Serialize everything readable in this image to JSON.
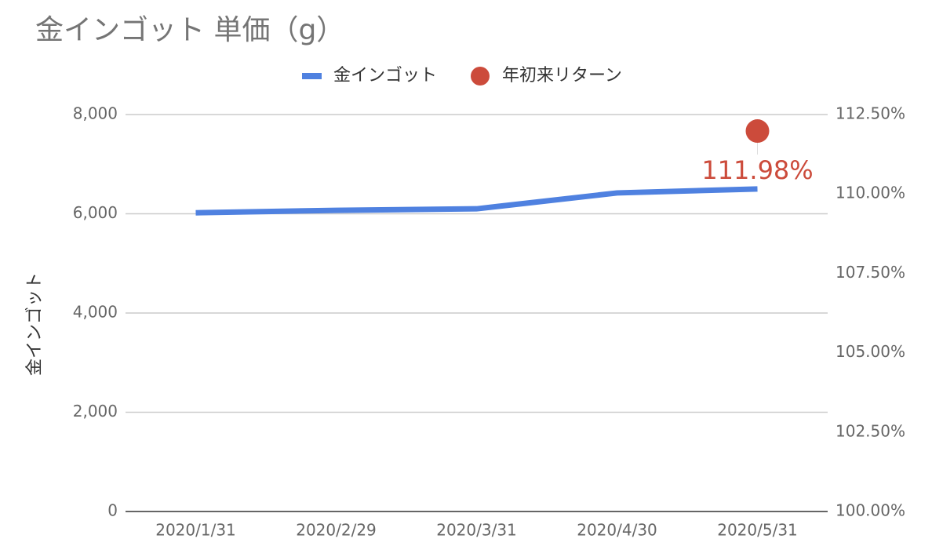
{
  "chart_data": {
    "type": "line",
    "title": "金インゴット 単価（g）",
    "y_label": "金インゴット",
    "categories": [
      "2020/1/31",
      "2020/2/29",
      "2020/3/31",
      "2020/4/30",
      "2020/5/31"
    ],
    "series": [
      {
        "name": "金インゴット",
        "type": "line",
        "color": "#4f81e0",
        "values": [
          6020,
          6070,
          6100,
          6420,
          6500
        ]
      },
      {
        "name": "年初来リターン",
        "type": "scatter",
        "axis": "y2",
        "color": "#cc4b3b",
        "values": [
          null,
          null,
          null,
          null,
          111.98
        ],
        "value_labels": [
          null,
          null,
          null,
          null,
          "111.98%"
        ]
      }
    ],
    "ylim": [
      0,
      8000
    ],
    "yticks": [
      0,
      {
        "value": 2000,
        "label": "2,000"
      },
      {
        "value": 4000,
        "label": "4,000"
      },
      {
        "value": 6000,
        "label": "6,000"
      },
      {
        "value": 8000,
        "label": "8,000"
      }
    ],
    "y2lim": [
      100,
      112.5
    ],
    "y2ticks": [
      {
        "value": 100,
        "label": "100.00%"
      },
      {
        "value": 102.5,
        "label": "102.50%"
      },
      {
        "value": 105,
        "label": "105.00%"
      },
      {
        "value": 107.5,
        "label": "107.50%"
      },
      {
        "value": 110,
        "label": "110.00%"
      },
      {
        "value": 112.5,
        "label": "112.50%"
      }
    ],
    "grid": true
  }
}
